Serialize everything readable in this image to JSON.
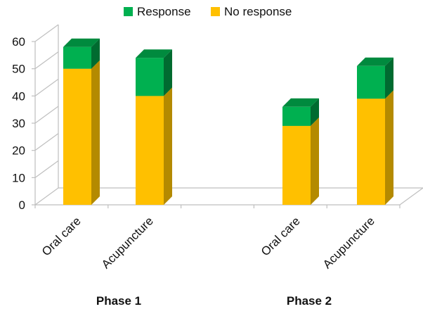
{
  "chart_data": {
    "type": "bar",
    "stacked": true,
    "three_d": true,
    "categories": [
      "Oral care",
      "Acupuncture",
      "Oral care",
      "Acupuncture"
    ],
    "groups": [
      {
        "label": "Phase 1",
        "category_indices": [
          0,
          1
        ]
      },
      {
        "label": "Phase 2",
        "category_indices": [
          2,
          3
        ]
      }
    ],
    "series": [
      {
        "name": "No response",
        "values": [
          50,
          40,
          29,
          39
        ],
        "color": "#ffc000",
        "side_color": "#b48a00",
        "top_color": "#e6ad00"
      },
      {
        "name": "Response",
        "values": [
          8,
          14,
          7,
          12
        ],
        "color": "#00b050",
        "side_color": "#006b30",
        "top_color": "#008a3e"
      }
    ],
    "legend_order": [
      "Response",
      "No response"
    ],
    "legend_position": "top",
    "ylim": [
      0,
      60
    ],
    "yticks": [
      "0",
      "10",
      "20",
      "30",
      "40",
      "50",
      "60"
    ],
    "grid": false
  }
}
